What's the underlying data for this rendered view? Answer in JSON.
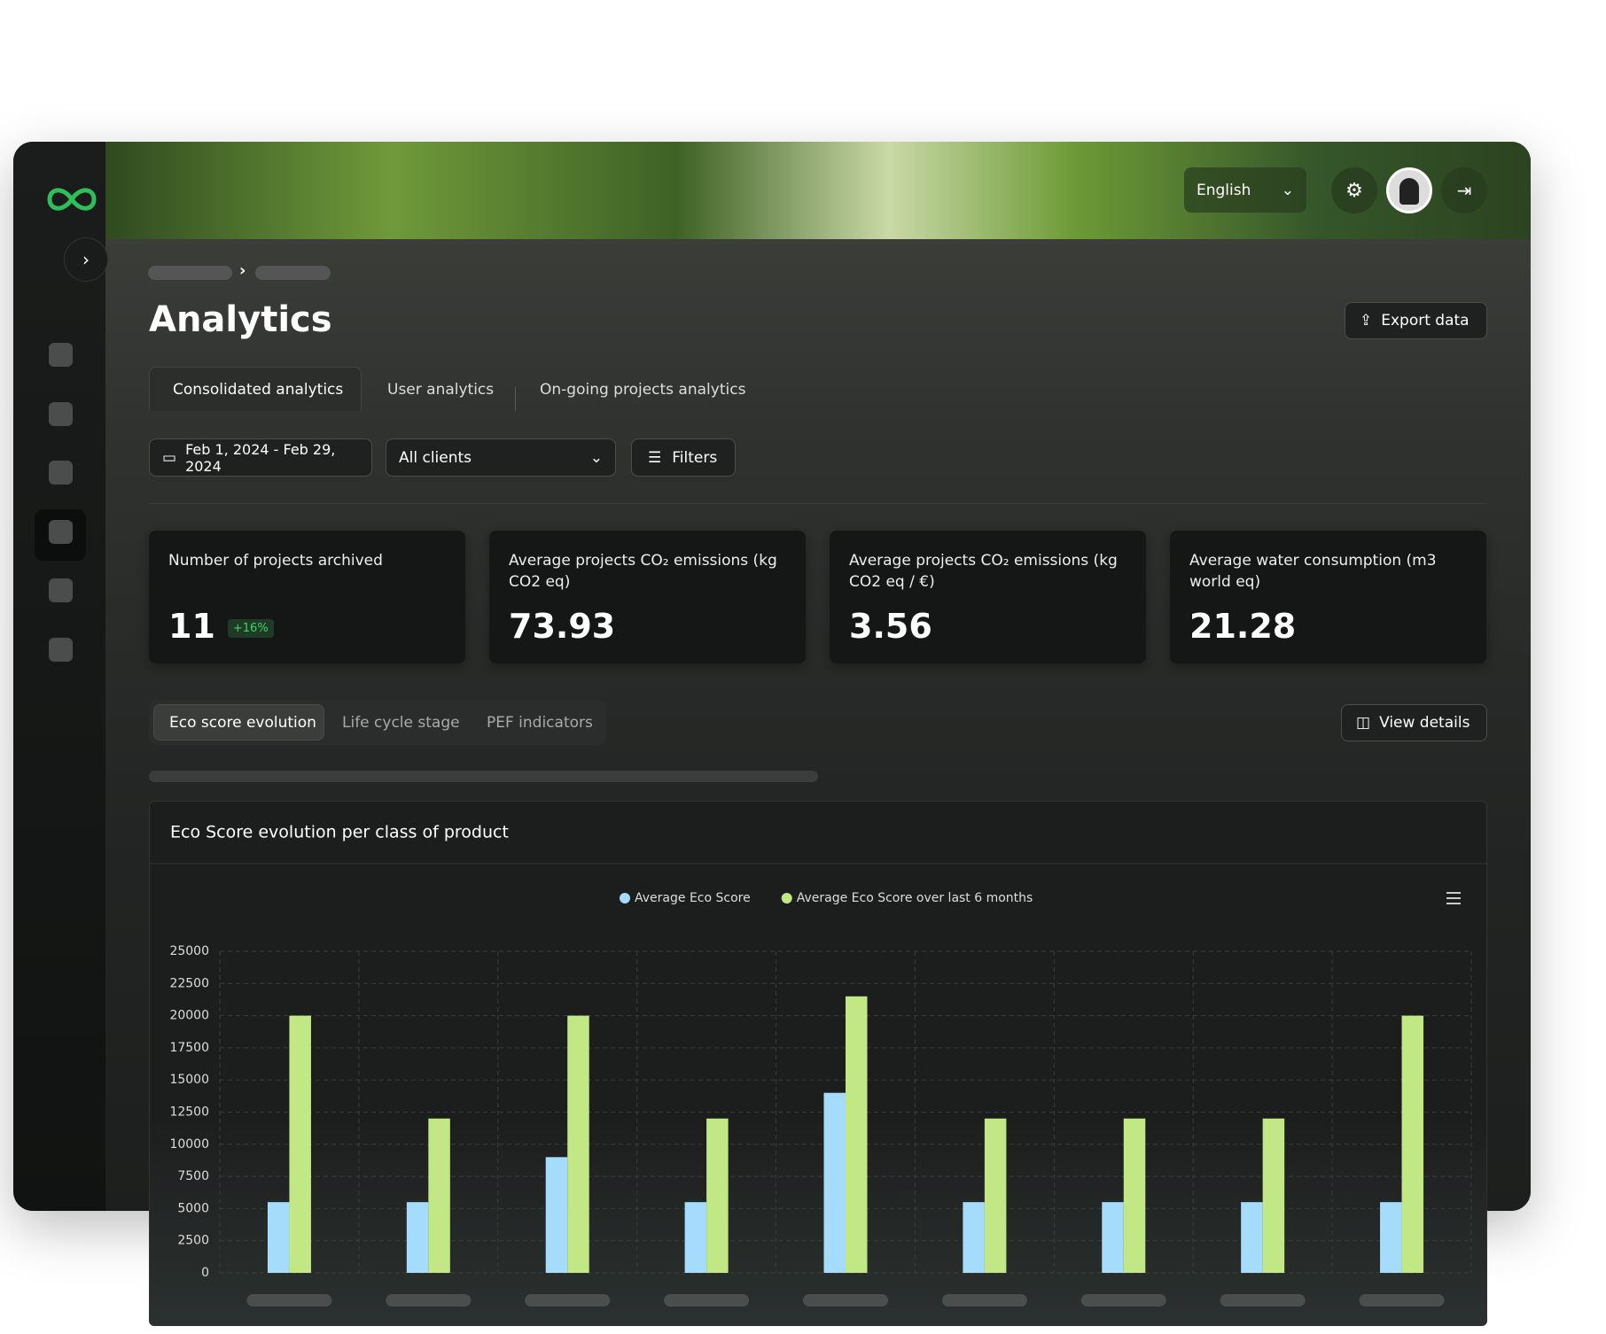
{
  "header": {
    "language": "English"
  },
  "page": {
    "title": "Analytics",
    "export_button": "Export data"
  },
  "tabs": [
    "Consolidated analytics",
    "User analytics",
    "On-going projects analytics"
  ],
  "filters": {
    "date_range": "Feb 1, 2024 - Feb 29, 2024",
    "client": "All clients",
    "button": "Filters"
  },
  "kpis": [
    {
      "label": "Number of projects archived",
      "value": 11,
      "badge": "+16%"
    },
    {
      "label": "Average projects CO₂ emissions (kg CO2 eq)",
      "value": 73.93
    },
    {
      "label": "Average projects CO₂ emissions (kg CO2 eq / €)",
      "value": 3.56
    },
    {
      "label": "Average water consumption (m3 world eq)",
      "value": 21.28
    }
  ],
  "chart_tabs": [
    "Eco score evolution",
    "Life cycle stage",
    "PEF indicators"
  ],
  "view_details": "View details",
  "chart_data": {
    "type": "bar",
    "title": "Eco Score evolution per class of product",
    "categories": [
      null,
      null,
      null,
      null,
      null,
      null,
      null,
      null,
      null
    ],
    "series": [
      {
        "name": "Average Eco Score",
        "color": "#a6dcfb",
        "values": [
          5500,
          5500,
          9000,
          5500,
          14000,
          5500,
          5500,
          5500,
          5500
        ]
      },
      {
        "name": "Average Eco Score over last 6 months",
        "color": "#c2e885",
        "values": [
          20000,
          12000,
          20000,
          12000,
          21500,
          12000,
          12000,
          12000,
          20000
        ]
      }
    ],
    "ylim": [
      0,
      25000
    ],
    "yticks": [
      0,
      2500,
      5000,
      7500,
      10000,
      12500,
      15000,
      17500,
      20000,
      22500,
      25000
    ],
    "grid": true
  }
}
